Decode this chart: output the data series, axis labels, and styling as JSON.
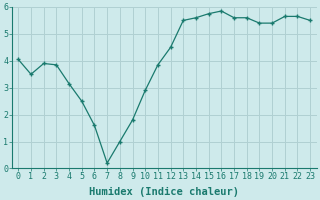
{
  "x": [
    0,
    1,
    2,
    3,
    4,
    5,
    6,
    7,
    8,
    9,
    10,
    11,
    12,
    13,
    14,
    15,
    16,
    17,
    18,
    19,
    20,
    21,
    22,
    23
  ],
  "y": [
    4.05,
    3.5,
    3.9,
    3.85,
    3.15,
    2.5,
    1.6,
    0.2,
    1.0,
    1.8,
    2.9,
    3.85,
    4.5,
    5.5,
    5.6,
    5.75,
    5.85,
    5.6,
    5.6,
    5.4,
    5.4,
    5.65,
    5.65,
    5.5
  ],
  "xlabel": "Humidex (Indice chaleur)",
  "xlim": [
    -0.5,
    23.5
  ],
  "ylim": [
    0,
    6
  ],
  "yticks": [
    0,
    1,
    2,
    3,
    4,
    5,
    6
  ],
  "xticks": [
    0,
    1,
    2,
    3,
    4,
    5,
    6,
    7,
    8,
    9,
    10,
    11,
    12,
    13,
    14,
    15,
    16,
    17,
    18,
    19,
    20,
    21,
    22,
    23
  ],
  "line_color": "#1a7a6e",
  "marker": "+",
  "marker_size": 3.5,
  "bg_color": "#ceeaeb",
  "grid_color": "#b0d0d2",
  "label_color": "#1a7a6e",
  "xlabel_fontsize": 7.5,
  "tick_fontsize": 6.0
}
